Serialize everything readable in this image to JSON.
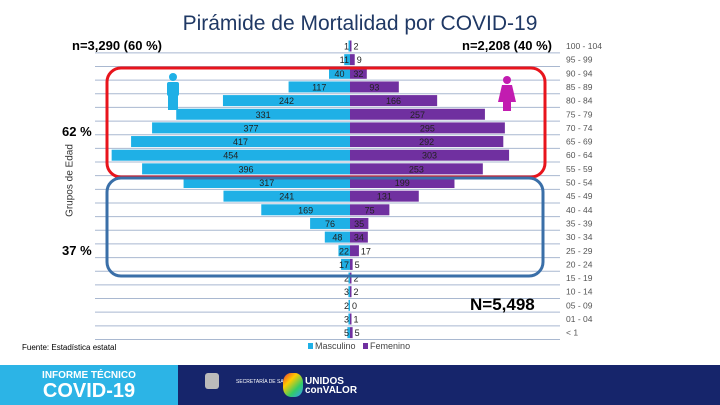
{
  "chart_data": {
    "type": "bar",
    "title": "Pirámide de Mortalidad por COVID-19",
    "ylabel": "Grupos de Edad",
    "categories": [
      "100 - 104",
      "95 - 99",
      "90 - 94",
      "85 - 89",
      "80 - 84",
      "75 - 79",
      "70 - 74",
      "65 - 69",
      "60 - 64",
      "55 - 59",
      "50 - 54",
      "45 - 49",
      "40 - 44",
      "35 - 39",
      "30 - 34",
      "25 - 29",
      "20 - 24",
      "15 - 19",
      "10 - 14",
      "05 - 09",
      "01 - 04",
      "< 1"
    ],
    "series": [
      {
        "name": "Masculino",
        "color": "#1fb0e6",
        "values": [
          1,
          11,
          40,
          117,
          242,
          331,
          377,
          417,
          454,
          396,
          317,
          241,
          169,
          76,
          48,
          22,
          17,
          2,
          3,
          2,
          3,
          5
        ]
      },
      {
        "name": "Femenino",
        "color": "#7030a0",
        "values": [
          2,
          9,
          32,
          93,
          166,
          257,
          295,
          292,
          303,
          253,
          199,
          131,
          75,
          35,
          34,
          17,
          5,
          2,
          2,
          0,
          1,
          5
        ]
      }
    ],
    "legend_position": "bottom"
  },
  "left_total": "n=3,290 (60 %)",
  "right_total": "n=2,208 (40 %)",
  "pct_red": "62 %",
  "pct_blue": "37 %",
  "grand_total": "N=5,498",
  "source": "Fuente: Estadística estatal",
  "banner": {
    "line1": "INFORME TÉCNICO",
    "line2": "COVID-19",
    "secretaria": "SECRETARÍA DE SALUD",
    "unidos": "UNIDOS",
    "con_valor": "conVALOR"
  },
  "colors": {
    "red_box": "#e8141c",
    "blue_box": "#3a6fa8",
    "icon_man": "#1fb0e6",
    "icon_woman": "#c21cb0"
  }
}
